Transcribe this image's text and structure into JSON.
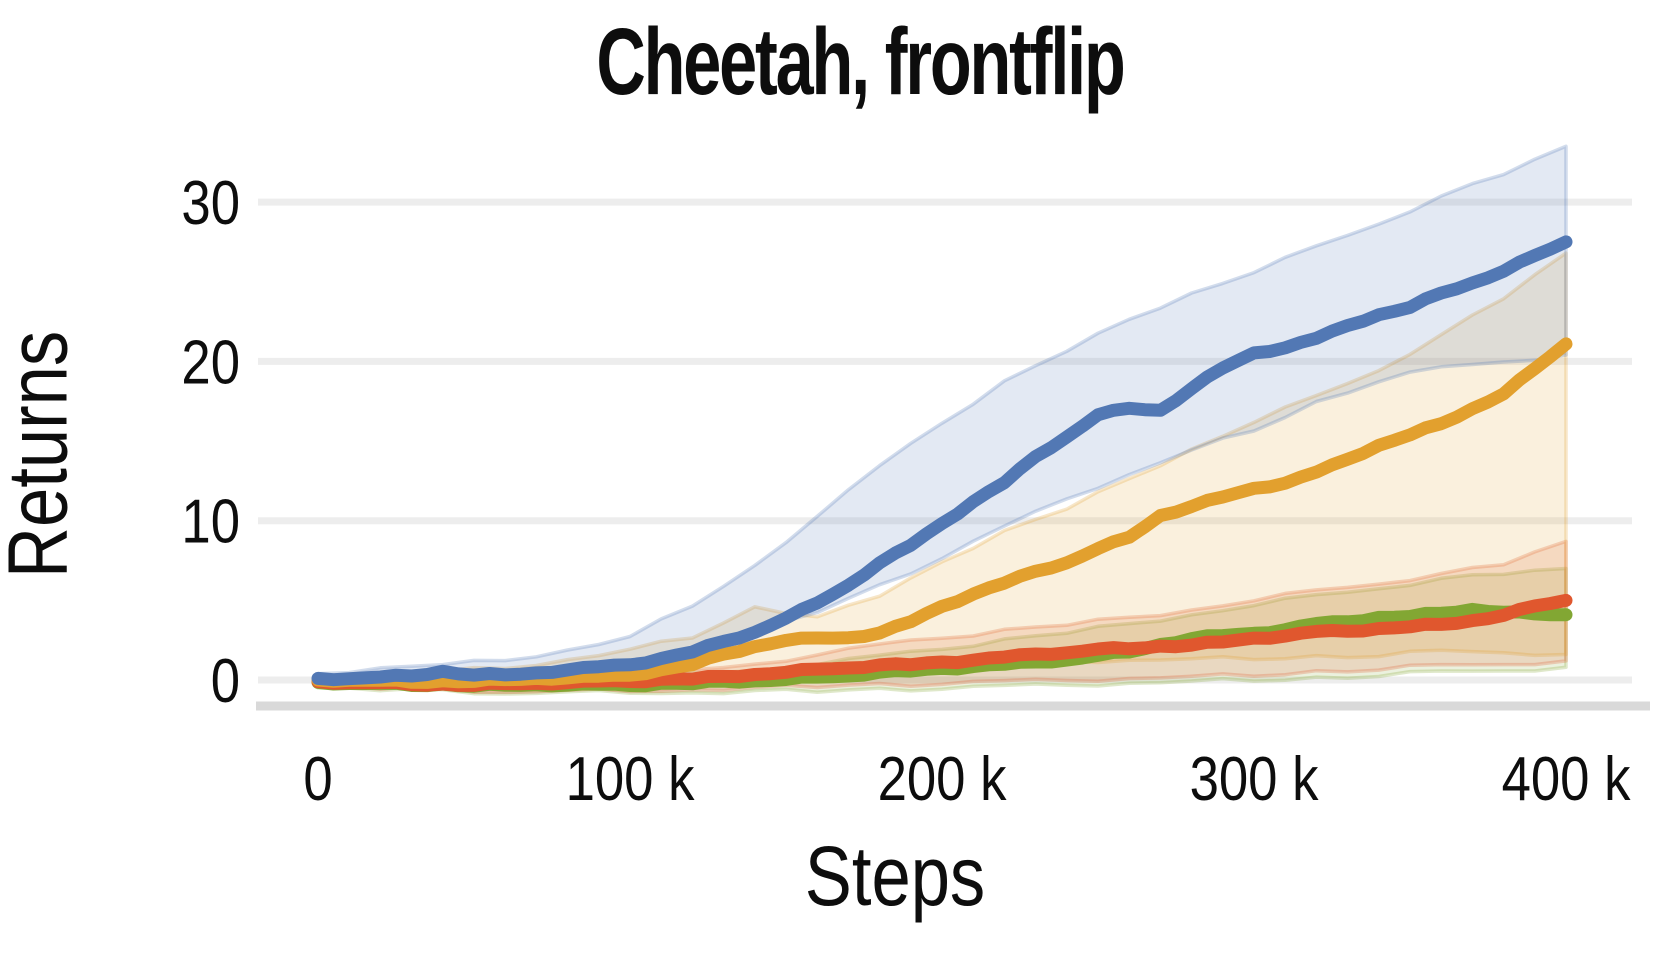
{
  "title": "Cheetah, frontflip",
  "axes": {
    "y_label": "Returns",
    "x_label": "Steps",
    "y_ticks": [
      {
        "value": 30,
        "label": "30"
      },
      {
        "value": 20,
        "label": "20"
      },
      {
        "value": 10,
        "label": "10"
      },
      {
        "value": 0,
        "label": "0"
      }
    ],
    "x_ticks": [
      {
        "value_k": 0,
        "label": "0"
      },
      {
        "value_k": 100,
        "label": "100 k"
      },
      {
        "value_k": 200,
        "label": "200 k"
      },
      {
        "value_k": 300,
        "label": "300 k"
      },
      {
        "value_k": 400,
        "label": "400 k"
      }
    ]
  },
  "style": {
    "background": "#ffffff",
    "text_color": "#0d0d0d",
    "gridline_color": "#ededed",
    "axis_spine_color": "#d9d9d9",
    "band_fill_opacity": 0.16,
    "band_edge_opacity": 0.26,
    "mean_line_width": 13
  },
  "chart_data": {
    "type": "line",
    "title": "Cheetah, frontflip",
    "xlabel": "Steps",
    "ylabel": "Returns",
    "xlim_k": [
      0,
      400
    ],
    "ylim": [
      -4.6,
      33.8
    ],
    "grid": "horizontal gridlines at y = 0, 10, 20, 30",
    "legend": "none",
    "x_mean_k": [
      0,
      10,
      20,
      30,
      40,
      50,
      60,
      70,
      80,
      90,
      100,
      110,
      120,
      130,
      140,
      150,
      160,
      170,
      180,
      190,
      200,
      210,
      220,
      230,
      240,
      250,
      260,
      270,
      280,
      290,
      300,
      310,
      320,
      330,
      340,
      350,
      360,
      370,
      380,
      390,
      400
    ],
    "x_band_k": [
      0,
      20,
      40,
      60,
      80,
      100,
      120,
      140,
      160,
      180,
      200,
      220,
      240,
      260,
      280,
      300,
      320,
      340,
      360,
      380,
      400
    ],
    "series": [
      {
        "name": "green",
        "color": "#82a733",
        "mean": [
          -0.15,
          -0.2,
          -0.25,
          -0.3,
          -0.3,
          -0.35,
          -0.35,
          -0.3,
          -0.3,
          -0.3,
          -0.3,
          -0.25,
          -0.2,
          -0.1,
          -0.05,
          0.05,
          0.15,
          0.3,
          0.45,
          0.6,
          0.7,
          0.85,
          1.0,
          1.1,
          1.3,
          1.5,
          1.8,
          2.2,
          2.6,
          2.8,
          2.9,
          3.2,
          3.5,
          3.7,
          3.9,
          4.0,
          4.2,
          4.4,
          4.3,
          4.1,
          4.1
        ],
        "upper": [
          0.1,
          0.1,
          0.1,
          0.2,
          0.2,
          0.3,
          0.4,
          0.6,
          1.0,
          1.5,
          2.0,
          2.5,
          3.0,
          3.5,
          4.1,
          4.7,
          5.3,
          5.8,
          6.3,
          6.7,
          7.0
        ],
        "lower": [
          -0.5,
          -0.6,
          -0.7,
          -0.8,
          -0.8,
          -0.8,
          -0.8,
          -0.7,
          -0.7,
          -0.6,
          -0.5,
          -0.4,
          -0.3,
          -0.2,
          -0.1,
          0.0,
          0.1,
          0.3,
          0.5,
          0.6,
          0.8
        ]
      },
      {
        "name": "red",
        "color": "#e0572e",
        "mean": [
          -0.1,
          -0.15,
          -0.2,
          -0.25,
          -0.3,
          -0.3,
          -0.25,
          -0.2,
          -0.15,
          -0.1,
          -0.05,
          0.0,
          0.1,
          0.2,
          0.35,
          0.5,
          0.65,
          0.8,
          0.9,
          1.0,
          1.1,
          1.25,
          1.45,
          1.6,
          1.75,
          1.9,
          2.0,
          2.1,
          2.2,
          2.4,
          2.6,
          2.8,
          3.0,
          3.1,
          3.2,
          3.35,
          3.5,
          3.7,
          4.1,
          4.6,
          5.0
        ],
        "upper": [
          0.2,
          0.2,
          0.2,
          0.3,
          0.3,
          0.4,
          0.6,
          1.0,
          1.6,
          2.2,
          2.7,
          3.1,
          3.5,
          3.9,
          4.4,
          5.0,
          5.6,
          6.1,
          6.6,
          7.3,
          8.7
        ],
        "lower": [
          -0.4,
          -0.5,
          -0.6,
          -0.7,
          -0.7,
          -0.7,
          -0.6,
          -0.5,
          -0.4,
          -0.3,
          -0.2,
          -0.1,
          0.0,
          0.1,
          0.2,
          0.3,
          0.5,
          0.7,
          0.9,
          1.0,
          1.2
        ]
      },
      {
        "name": "orange",
        "color": "#e2a02e",
        "mean": [
          0.0,
          0.0,
          -0.05,
          -0.1,
          -0.1,
          -0.05,
          0.0,
          0.1,
          0.15,
          0.2,
          0.35,
          0.6,
          1.0,
          1.6,
          2.1,
          2.5,
          2.6,
          2.7,
          2.9,
          3.7,
          4.6,
          5.4,
          6.1,
          6.8,
          7.4,
          8.2,
          9.0,
          10.3,
          10.9,
          11.5,
          12.0,
          12.4,
          13.0,
          13.9,
          14.7,
          15.4,
          16.1,
          17.0,
          18.0,
          19.5,
          21.1
        ],
        "upper": [
          0.3,
          0.4,
          0.5,
          0.8,
          1.2,
          2.0,
          2.6,
          4.6,
          4.0,
          5.2,
          7.5,
          9.3,
          10.8,
          12.6,
          14.5,
          16.2,
          17.8,
          19.5,
          21.6,
          24.0,
          26.8
        ],
        "lower": [
          -0.3,
          -0.3,
          -0.4,
          -0.4,
          -0.3,
          -0.2,
          0.0,
          0.3,
          0.6,
          0.8,
          1.0,
          1.1,
          1.2,
          1.25,
          1.3,
          1.35,
          1.45,
          1.55,
          1.8,
          1.75,
          1.6
        ]
      },
      {
        "name": "blue",
        "color": "#5278b4",
        "mean": [
          0.1,
          0.1,
          0.15,
          0.3,
          0.5,
          0.35,
          0.3,
          0.45,
          0.65,
          0.8,
          1.0,
          1.3,
          1.8,
          2.4,
          3.0,
          3.9,
          4.8,
          6.0,
          7.3,
          8.5,
          9.8,
          11.2,
          12.4,
          14.0,
          15.3,
          16.6,
          17.1,
          16.9,
          18.3,
          19.6,
          20.5,
          20.9,
          21.4,
          22.3,
          22.9,
          23.4,
          24.3,
          24.9,
          25.7,
          26.6,
          27.5
        ],
        "upper": [
          0.4,
          0.8,
          0.9,
          1.3,
          1.8,
          2.8,
          4.6,
          7.2,
          10.3,
          13.4,
          16.2,
          18.7,
          20.7,
          22.6,
          24.3,
          25.6,
          27.2,
          28.7,
          30.3,
          31.8,
          33.5
        ],
        "lower": [
          -0.1,
          -0.1,
          0.1,
          0.3,
          0.5,
          1.0,
          1.8,
          2.9,
          4.3,
          5.9,
          7.7,
          9.6,
          11.4,
          12.9,
          14.4,
          15.7,
          17.4,
          18.8,
          19.6,
          20.0,
          20.4
        ]
      }
    ]
  }
}
